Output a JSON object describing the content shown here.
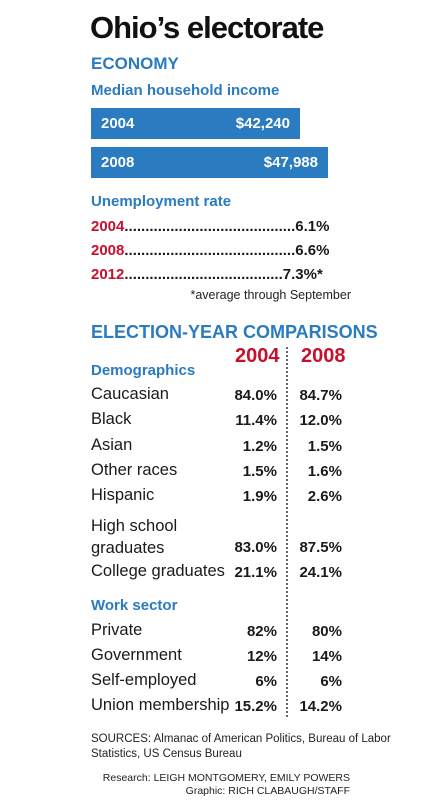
{
  "title": "Ohio’s electorate",
  "economy": {
    "heading": "ECONOMY",
    "income_label": "Median household income",
    "unemployment_label": "Unemployment rate",
    "note": "*average through September"
  },
  "comparison": {
    "heading": "ELECTION-YEAR COMPARISONS",
    "col_a": "2004",
    "col_b": "2008",
    "demographics_label": "Demographics",
    "work_label": "Work sector"
  },
  "sources": "SOURCES: Almanac of American Politics, Bureau of Labor Statistics, US Census Bureau",
  "credit_research": "Research: LEIGH MONTGOMERY, EMILY POWERS",
  "credit_graphic": "Graphic: RICH CLABAUGH/STAFF",
  "colors": {
    "accent_blue": "#2a7bc0",
    "year_red": "#c8102e"
  },
  "chart_data": [
    {
      "type": "bar",
      "title": "Median household income",
      "categories": [
        "2004",
        "2008"
      ],
      "values": [
        42240,
        47988
      ],
      "value_labels": [
        "$42,240",
        "$47,988"
      ]
    },
    {
      "type": "table",
      "title": "Unemployment rate",
      "categories": [
        "2004",
        "2008",
        "2012"
      ],
      "values": [
        6.1,
        6.6,
        7.3
      ],
      "value_labels": [
        "6.1%",
        "6.6%",
        "7.3%*"
      ]
    },
    {
      "type": "table",
      "title": "Demographics",
      "columns": [
        "2004",
        "2008"
      ],
      "rows": [
        {
          "label": "Caucasian",
          "values": [
            "84.0%",
            "84.7%"
          ]
        },
        {
          "label": "Black",
          "values": [
            "11.4%",
            "12.0%"
          ]
        },
        {
          "label": "Asian",
          "values": [
            "1.2%",
            "1.5%"
          ]
        },
        {
          "label": "Other races",
          "values": [
            "1.5%",
            "1.6%"
          ]
        },
        {
          "label": "Hispanic",
          "values": [
            "1.9%",
            "2.6%"
          ]
        },
        {
          "label": "High school graduates",
          "values": [
            "83.0%",
            "87.5%"
          ]
        },
        {
          "label": "College graduates",
          "values": [
            "21.1%",
            "24.1%"
          ]
        }
      ]
    },
    {
      "type": "table",
      "title": "Work sector",
      "columns": [
        "2004",
        "2008"
      ],
      "rows": [
        {
          "label": "Private",
          "values": [
            "82%",
            "80%"
          ]
        },
        {
          "label": "Government",
          "values": [
            "12%",
            "14%"
          ]
        },
        {
          "label": "Self-employed",
          "values": [
            "6%",
            "6%"
          ]
        },
        {
          "label": "Union membership",
          "values": [
            "15.2%",
            "14.2%"
          ]
        }
      ]
    }
  ]
}
